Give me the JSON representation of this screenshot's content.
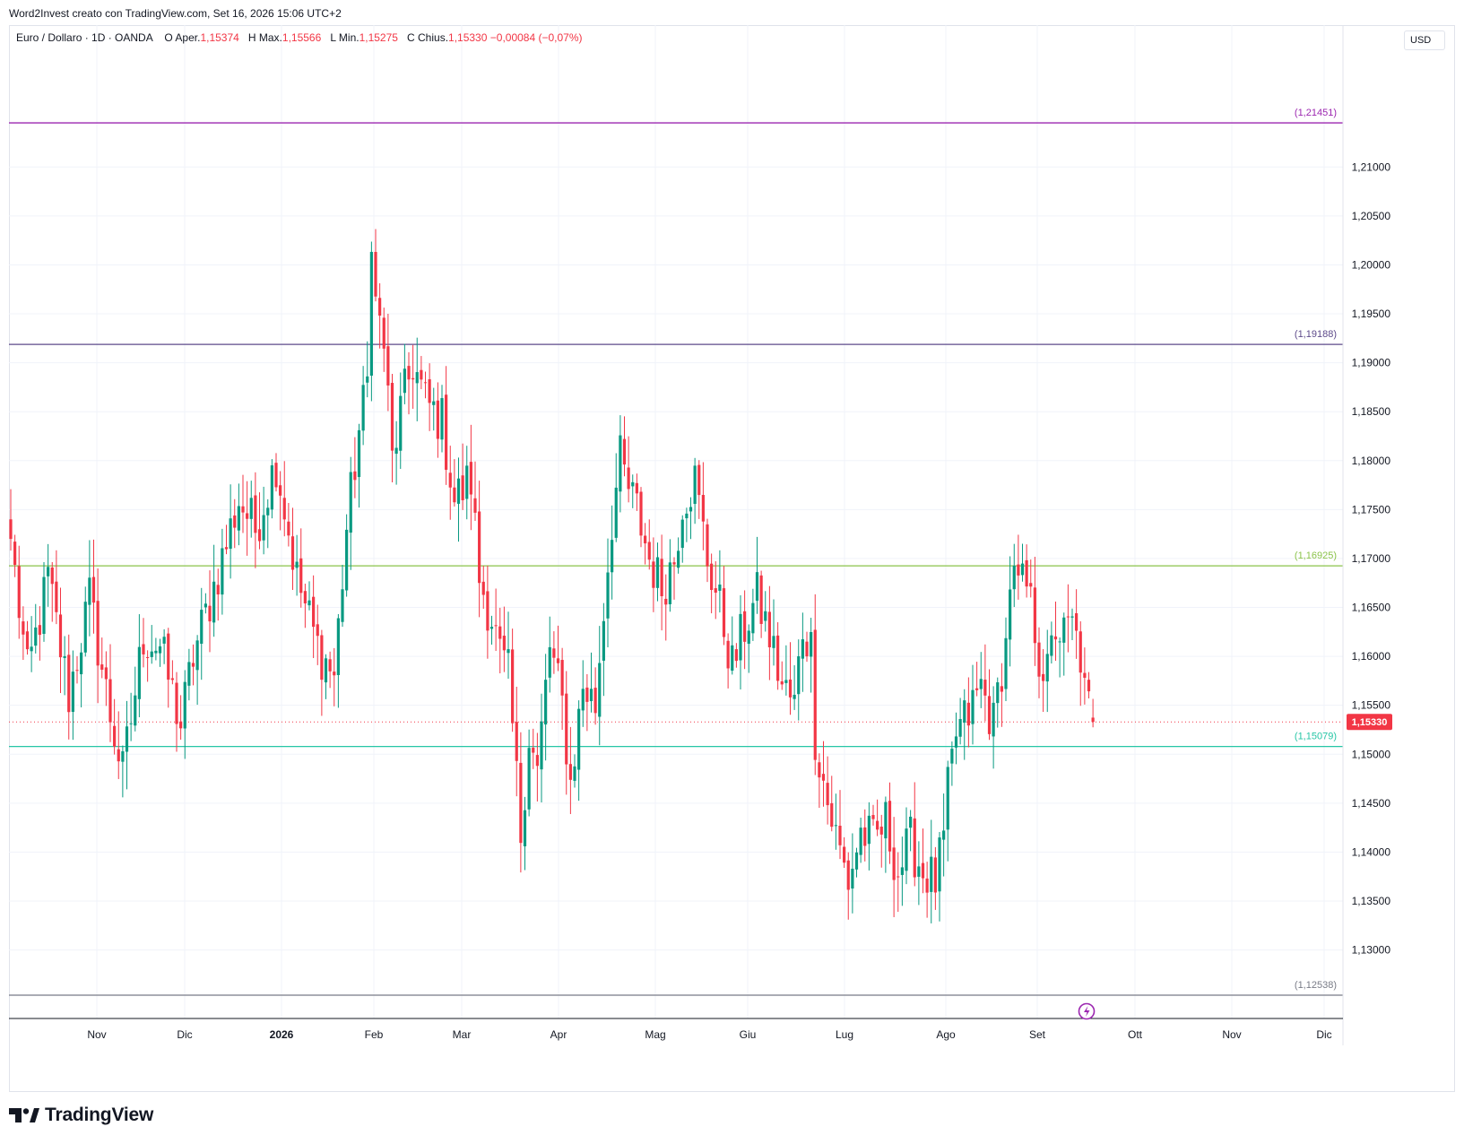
{
  "header": {
    "credit": "Word2Invest creato con TradingView.com, Set 16, 2026 15:06 UTC+2"
  },
  "legend": {
    "symbol": "Euro / Dollaro · 1D · OANDA",
    "open_label": "O",
    "open_name": "Aper.",
    "open": "1,15374",
    "high_label": "H",
    "high_name": "Max.",
    "high": "1,15566",
    "low_label": "L",
    "low_name": "Min.",
    "low": "1,15275",
    "close_label": "C",
    "close_name": "Chius.",
    "close": "1,15330",
    "change": "−0,00084 (−0,07%)"
  },
  "currency_button": "USD",
  "logo": {
    "text": "TradingView"
  },
  "colors": {
    "up": "#089981",
    "down": "#f23645",
    "grid": "#f0f3fa",
    "axis": "#131722"
  },
  "chart_data": {
    "type": "candlestick",
    "title": "Euro / Dollaro · 1D · OANDA",
    "y_range": [
      1.123,
      1.2245
    ],
    "y_ticks": [
      "1,13000",
      "1,13500",
      "1,14000",
      "1,14500",
      "1,15000",
      "1,15500",
      "1,16000",
      "1,16500",
      "1,17000",
      "1,17500",
      "1,18000",
      "1,18500",
      "1,19000",
      "1,19500",
      "1,20000",
      "1,20500",
      "1,21000"
    ],
    "x_labels": [
      "Nov",
      "Dic",
      "2026",
      "Feb",
      "Mar",
      "Apr",
      "Mag",
      "Giu",
      "Lug",
      "Ago",
      "Set",
      "Ott",
      "Nov",
      "Dic"
    ],
    "grid": true,
    "last_price": "1,15330",
    "last_price_value": 1.1533,
    "horizontal_levels": [
      {
        "value": 1.21451,
        "label": "(1,21451)",
        "color": "#9c27b0"
      },
      {
        "value": 1.19188,
        "label": "(1,19188)",
        "color": "#5d4a8a"
      },
      {
        "value": 1.16925,
        "label": "(1,16925)",
        "color": "#8bc34a"
      },
      {
        "value": 1.15079,
        "label": "(1,15079)",
        "color": "#26c6a6"
      },
      {
        "value": 1.12538,
        "label": "(1,12538)",
        "color": "#787b86"
      }
    ],
    "close_anchors": [
      [
        0,
        1.172
      ],
      [
        4,
        1.158
      ],
      [
        9,
        1.168
      ],
      [
        14,
        1.156
      ],
      [
        19,
        1.166
      ],
      [
        24,
        1.154
      ],
      [
        27,
        1.148
      ],
      [
        32,
        1.162
      ],
      [
        36,
        1.161
      ],
      [
        41,
        1.153
      ],
      [
        44,
        1.16
      ],
      [
        51,
        1.17
      ],
      [
        55,
        1.176
      ],
      [
        59,
        1.173
      ],
      [
        64,
        1.18
      ],
      [
        69,
        1.168
      ],
      [
        74,
        1.161
      ],
      [
        78,
        1.158
      ],
      [
        81,
        1.173
      ],
      [
        84,
        1.183
      ],
      [
        86,
        1.188
      ],
      [
        87,
        1.204
      ],
      [
        88,
        1.196
      ],
      [
        90,
        1.192
      ],
      [
        92,
        1.18
      ],
      [
        94,
        1.185
      ],
      [
        97,
        1.19
      ],
      [
        100,
        1.186
      ],
      [
        104,
        1.184
      ],
      [
        107,
        1.176
      ],
      [
        111,
        1.178
      ],
      [
        113,
        1.168
      ],
      [
        116,
        1.164
      ],
      [
        118,
        1.16
      ],
      [
        120,
        1.158
      ],
      [
        123,
        1.142
      ],
      [
        125,
        1.152
      ],
      [
        127,
        1.148
      ],
      [
        130,
        1.161
      ],
      [
        133,
        1.155
      ],
      [
        135,
        1.147
      ],
      [
        138,
        1.157
      ],
      [
        141,
        1.155
      ],
      [
        143,
        1.165
      ],
      [
        145,
        1.174
      ],
      [
        147,
        1.18
      ],
      [
        149,
        1.177
      ],
      [
        151,
        1.175
      ],
      [
        154,
        1.17
      ],
      [
        157,
        1.167
      ],
      [
        160,
        1.17
      ],
      [
        162,
        1.176
      ],
      [
        165,
        1.178
      ],
      [
        168,
        1.17
      ],
      [
        171,
        1.165
      ],
      [
        174,
        1.159
      ],
      [
        177,
        1.163
      ],
      [
        180,
        1.166
      ],
      [
        183,
        1.162
      ],
      [
        186,
        1.157
      ],
      [
        189,
        1.155
      ],
      [
        191,
        1.163
      ],
      [
        193,
        1.161
      ],
      [
        194,
        1.152
      ],
      [
        197,
        1.145
      ],
      [
        200,
        1.14
      ],
      [
        202,
        1.137
      ],
      [
        205,
        1.142
      ],
      [
        208,
        1.141
      ],
      [
        211,
        1.143
      ],
      [
        214,
        1.138
      ],
      [
        217,
        1.141
      ],
      [
        220,
        1.138
      ],
      [
        223,
        1.137
      ],
      [
        225,
        1.141
      ],
      [
        226,
        1.146
      ],
      [
        228,
        1.152
      ],
      [
        231,
        1.154
      ],
      [
        234,
        1.157
      ],
      [
        237,
        1.153
      ],
      [
        239,
        1.159
      ],
      [
        240,
        1.161
      ],
      [
        241,
        1.168
      ],
      [
        243,
        1.167
      ],
      [
        245,
        1.167
      ],
      [
        247,
        1.163
      ],
      [
        248,
        1.16
      ],
      [
        250,
        1.158
      ],
      [
        252,
        1.163
      ],
      [
        254,
        1.162
      ],
      [
        256,
        1.163
      ],
      [
        258,
        1.16
      ],
      [
        259,
        1.156
      ],
      [
        261,
        1.1533
      ]
    ]
  }
}
